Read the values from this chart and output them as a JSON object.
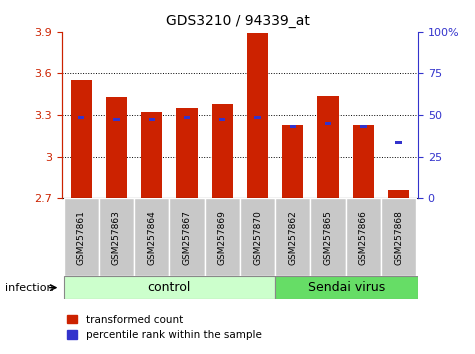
{
  "title": "GDS3210 / 94339_at",
  "samples": [
    "GSM257861",
    "GSM257863",
    "GSM257864",
    "GSM257867",
    "GSM257869",
    "GSM257870",
    "GSM257862",
    "GSM257865",
    "GSM257866",
    "GSM257868"
  ],
  "red_values": [
    3.55,
    3.43,
    3.32,
    3.35,
    3.38,
    3.89,
    3.23,
    3.44,
    3.23,
    2.76
  ],
  "blue_values": [
    3.28,
    3.265,
    3.265,
    3.28,
    3.265,
    3.28,
    3.215,
    3.24,
    3.215,
    3.105
  ],
  "y_min": 2.7,
  "y_max": 3.9,
  "y_ticks_left": [
    2.7,
    3.0,
    3.3,
    3.6,
    3.9
  ],
  "y_ticks_left_labels": [
    "2.7",
    "3",
    "3.3",
    "3.6",
    "3.9"
  ],
  "y_ticks_right_pct": [
    0,
    25,
    50,
    75,
    100
  ],
  "y_ticks_right_labels": [
    "0",
    "25",
    "50",
    "75",
    "100%"
  ],
  "bar_color": "#cc2200",
  "blue_color": "#3333cc",
  "control_bg": "#ccffcc",
  "sendai_bg": "#66dd66",
  "control_label": "control",
  "sendai_label": "Sendai virus",
  "infection_label": "infection",
  "legend_red": "transformed count",
  "legend_blue": "percentile rank within the sample",
  "n_control": 6,
  "n_sendai": 4
}
